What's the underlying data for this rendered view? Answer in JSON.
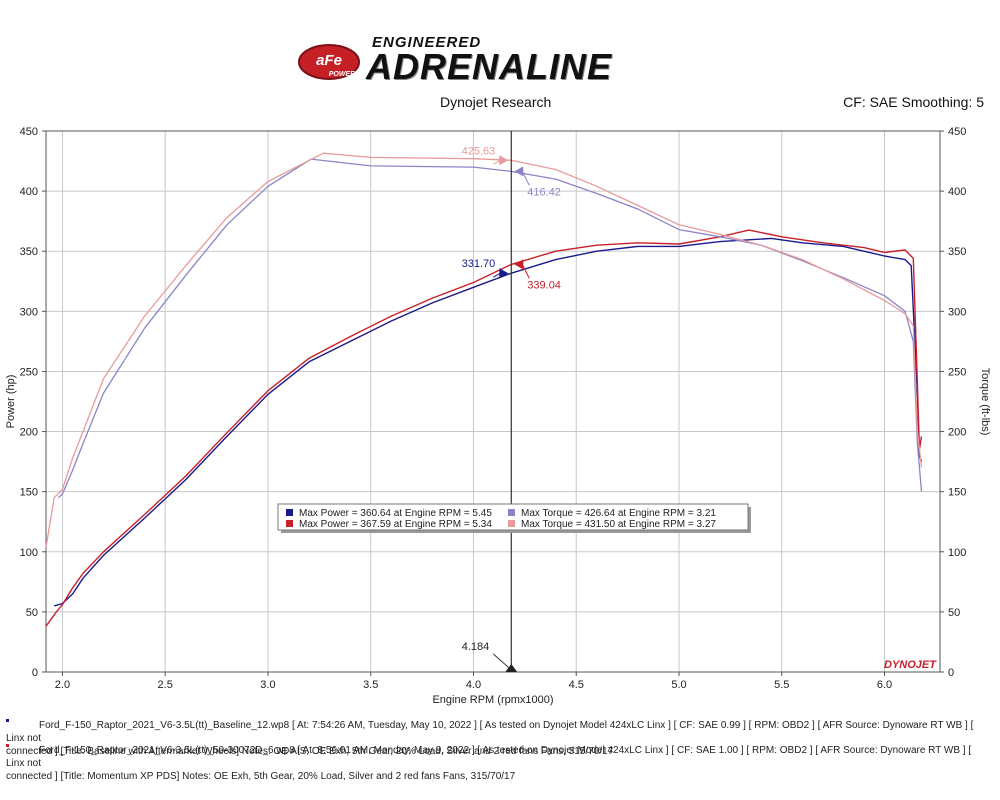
{
  "brand": {
    "logo_text": "aFe POWER",
    "line1": "ENGINEERED",
    "line2": "ADRENALINE"
  },
  "header": {
    "left": "Dynojet Research",
    "right": "CF: SAE Smoothing: 5"
  },
  "colors": {
    "baseline": "#1a1a8c",
    "baseline_light": "#8b85c8",
    "modified": "#c8202a",
    "modified_light": "#e89a9c",
    "cursor": "#333333",
    "grid": "#c8c8c8"
  },
  "chart_data": {
    "type": "line",
    "title": "",
    "xlabel": "Engine RPM (rpmx1000)",
    "ylabel": "Power (hp)",
    "ylabel_right": "Torque (ft-lbs)",
    "xlim": [
      1.92,
      6.27
    ],
    "ylim": [
      0,
      450
    ],
    "ylim_right": [
      0,
      450
    ],
    "x_ticks": [
      "2.0",
      "2.5",
      "3.0",
      "3.5",
      "4.0",
      "4.5",
      "5.0",
      "5.5",
      "6.0"
    ],
    "y_ticks": [
      "0",
      "50",
      "100",
      "150",
      "200",
      "250",
      "300",
      "350",
      "400",
      "450"
    ],
    "grid": true,
    "watermark": "DYNOJET",
    "series": [
      {
        "name": "Max Power = 360.64 at Engine RPM = 5.45",
        "metric": "power",
        "run": "baseline",
        "color": "#1a1a8c",
        "x": [
          1.96,
          2.0,
          2.05,
          2.1,
          2.2,
          2.4,
          2.6,
          2.8,
          3.0,
          3.2,
          3.4,
          3.6,
          3.8,
          4.0,
          4.184,
          4.4,
          4.6,
          4.8,
          5.0,
          5.2,
          5.45,
          5.6,
          5.8,
          6.0,
          6.1,
          6.13,
          6.16,
          6.17,
          6.18
        ],
        "y": [
          55,
          57,
          65,
          78,
          97,
          128,
          160,
          196,
          231,
          258,
          275,
          292,
          307,
          320,
          331.7,
          343,
          350,
          354,
          354,
          358,
          360.64,
          357,
          354,
          346,
          343,
          338,
          230,
          180,
          175
        ]
      },
      {
        "name": "Max Power = 367.59 at Engine RPM = 5.34",
        "metric": "power",
        "run": "modified",
        "color": "#c8202a",
        "x": [
          1.92,
          1.97,
          2.0,
          2.05,
          2.1,
          2.2,
          2.4,
          2.6,
          2.8,
          3.0,
          3.2,
          3.4,
          3.6,
          3.8,
          4.0,
          4.184,
          4.4,
          4.6,
          4.8,
          5.0,
          5.2,
          5.34,
          5.5,
          5.7,
          5.9,
          6.0,
          6.1,
          6.14,
          6.16,
          6.17,
          6.18
        ],
        "y": [
          38,
          50,
          56,
          70,
          82,
          100,
          131,
          163,
          199,
          234,
          261,
          279,
          296,
          311,
          324,
          339.04,
          350,
          355,
          357,
          356,
          362,
          367.59,
          362,
          357,
          353,
          349,
          351,
          344,
          240,
          185,
          196
        ]
      },
      {
        "name": "Max Torque = 426.64 at Engine RPM = 3.21",
        "metric": "torque",
        "run": "baseline",
        "color": "#8b85c8",
        "x": [
          1.98,
          2.0,
          2.05,
          2.1,
          2.2,
          2.4,
          2.6,
          2.8,
          3.0,
          3.21,
          3.5,
          4.0,
          4.184,
          4.4,
          4.6,
          4.8,
          5.0,
          5.2,
          5.4,
          5.6,
          5.8,
          6.0,
          6.1,
          6.14,
          6.16,
          6.18
        ],
        "y": [
          145,
          148,
          168,
          190,
          232,
          286,
          330,
          372,
          404,
          426.64,
          421,
          420,
          416.42,
          410,
          398,
          385,
          368,
          362,
          355,
          342,
          328,
          313,
          300,
          275,
          190,
          150
        ]
      },
      {
        "name": "Max Torque = 431.50 at Engine RPM = 3.27",
        "metric": "torque",
        "run": "modified",
        "color": "#e89a9c",
        "x": [
          1.92,
          1.96,
          2.0,
          2.05,
          2.1,
          2.2,
          2.4,
          2.6,
          2.8,
          3.0,
          3.27,
          3.5,
          4.0,
          4.184,
          4.4,
          4.6,
          4.8,
          5.0,
          5.2,
          5.4,
          5.6,
          5.8,
          6.0,
          6.1,
          6.14,
          6.16,
          6.18
        ],
        "y": [
          104,
          145,
          152,
          178,
          200,
          244,
          296,
          338,
          378,
          408,
          431.5,
          428,
          427,
          425.63,
          418,
          404,
          388,
          372,
          364,
          355,
          343,
          327,
          309,
          298,
          288,
          200,
          170
        ]
      }
    ],
    "cursor": {
      "x": 4.184,
      "label": "4.184"
    },
    "annotations": [
      {
        "text": "425.63",
        "series": 3,
        "x": 4.184,
        "y": 425.63,
        "side": "left"
      },
      {
        "text": "416.42",
        "series": 2,
        "x": 4.184,
        "y": 416.42,
        "side": "right"
      },
      {
        "text": "331.70",
        "series": 0,
        "x": 4.184,
        "y": 331.7,
        "side": "left"
      },
      {
        "text": "339.04",
        "series": 1,
        "x": 4.184,
        "y": 339.04,
        "side": "right"
      }
    ],
    "legend_placement": "center-bottom"
  },
  "runs": [
    {
      "marker_color": "#1a1a8c",
      "line1": "Ford_F-150_Raptor_2021_V6-3.5L(tt)_Baseline_12.wp8 [ At: 7:54:26 AM, Tuesday, May 10, 2022 ] [ As tested on Dynojet Model 424xLC Linx ] [ CF: SAE 0.99 ] [ RPM: OBD2 ] [ AFR Source: Dynoware RT WB ] [ Linx not",
      "line2": "connected ] [Title: Baseline with Aftermarket Wheels]  Notes: OE AIS, OE Exh, 5th Gear, 20% Load, Silver and 2 red fans Fans, 315/70/17"
    },
    {
      "marker_color": "#c8202a",
      "line1": "Ford_F-150_Raptor_2021_V6-3.5L(tt)_50-30072D_6.wp8 [ At: 8:56:01 AM, Monday, May 9, 2022 ] [ As tested on Dynojet Model 424xLC Linx ] [ CF: SAE 1.00 ] [ RPM: OBD2 ] [ AFR Source: Dynoware RT WB ] [ Linx not",
      "line2": "connected ] [Title: Momentum XP PDS]  Notes: OE Exh, 5th Gear, 20% Load, Silver and 2 red fans Fans, 315/70/17"
    }
  ]
}
